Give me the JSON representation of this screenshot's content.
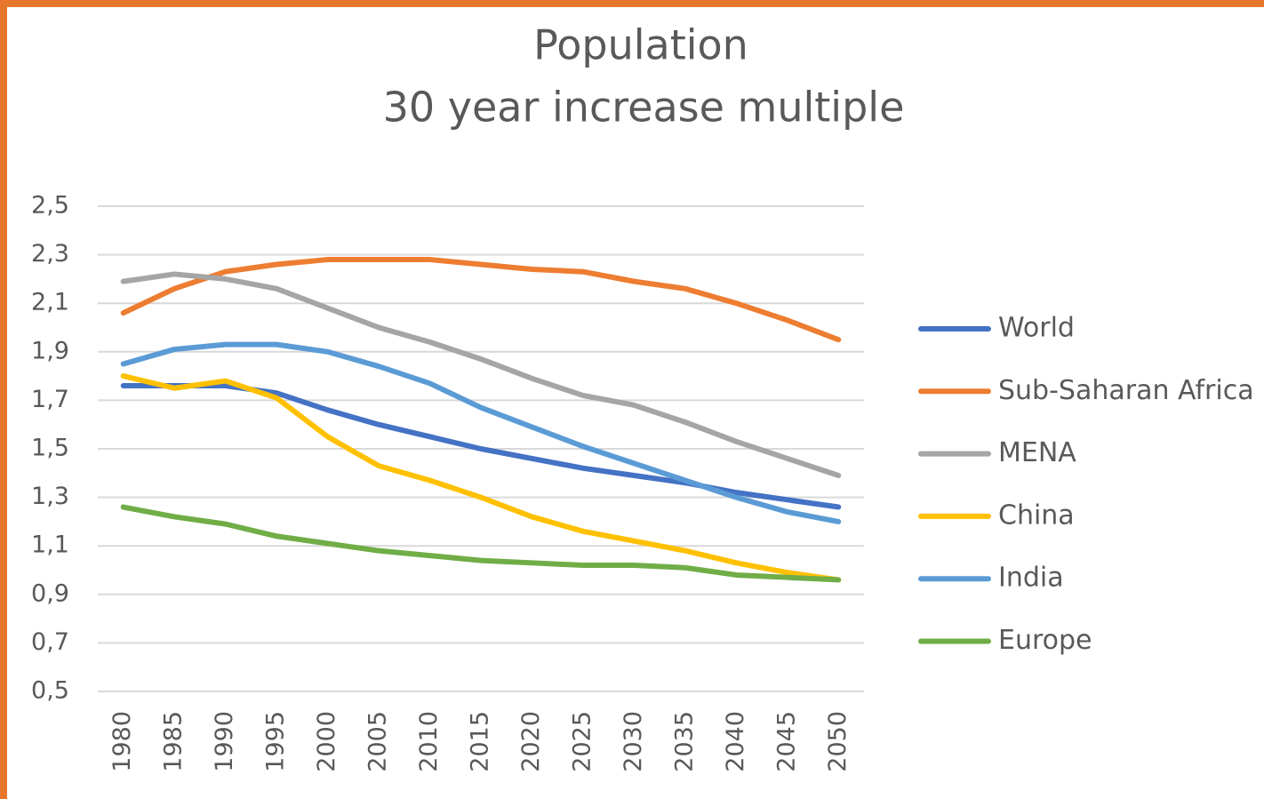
{
  "chart_data": {
    "type": "line",
    "title": "Population",
    "subtitle": "30 year increase multiple",
    "categories": [
      "1980",
      "1985",
      "1990",
      "1995",
      "2000",
      "2005",
      "2010",
      "2015",
      "2020",
      "2025",
      "2030",
      "2035",
      "2040",
      "2045",
      "2050"
    ],
    "series": [
      {
        "name": "World",
        "color": "#4472c4",
        "values": [
          1.76,
          1.76,
          1.76,
          1.73,
          1.66,
          1.6,
          1.55,
          1.5,
          1.46,
          1.42,
          1.39,
          1.36,
          1.32,
          1.29,
          1.26
        ]
      },
      {
        "name": "Sub-Saharan Africa",
        "color": "#ed7d31",
        "values": [
          2.06,
          2.16,
          2.23,
          2.26,
          2.28,
          2.28,
          2.28,
          2.26,
          2.24,
          2.23,
          2.19,
          2.16,
          2.1,
          2.03,
          1.95
        ]
      },
      {
        "name": "MENA",
        "color": "#a5a5a5",
        "values": [
          2.19,
          2.22,
          2.2,
          2.16,
          2.08,
          2.0,
          1.94,
          1.87,
          1.79,
          1.72,
          1.68,
          1.61,
          1.53,
          1.46,
          1.39
        ]
      },
      {
        "name": "China",
        "color": "#ffc000",
        "values": [
          1.8,
          1.75,
          1.78,
          1.71,
          1.55,
          1.43,
          1.37,
          1.3,
          1.22,
          1.16,
          1.12,
          1.08,
          1.03,
          0.99,
          0.96
        ]
      },
      {
        "name": "India",
        "color": "#5b9bd5",
        "values": [
          1.85,
          1.91,
          1.93,
          1.93,
          1.9,
          1.84,
          1.77,
          1.67,
          1.59,
          1.51,
          1.44,
          1.37,
          1.3,
          1.24,
          1.2
        ]
      },
      {
        "name": "Europe",
        "color": "#70ad47",
        "values": [
          1.26,
          1.22,
          1.19,
          1.14,
          1.11,
          1.08,
          1.06,
          1.04,
          1.03,
          1.02,
          1.02,
          1.01,
          0.98,
          0.97,
          0.96
        ]
      }
    ],
    "ylim": [
      0.5,
      2.5
    ],
    "yticks": [
      {
        "value": 0.5,
        "label": "0,5"
      },
      {
        "value": 0.7,
        "label": "0,7"
      },
      {
        "value": 0.9,
        "label": "0,9"
      },
      {
        "value": 1.1,
        "label": "1,1"
      },
      {
        "value": 1.3,
        "label": "1,3"
      },
      {
        "value": 1.5,
        "label": "1,5"
      },
      {
        "value": 1.7,
        "label": "1,7"
      },
      {
        "value": 1.9,
        "label": "1,9"
      },
      {
        "value": 2.1,
        "label": "2,1"
      },
      {
        "value": 2.3,
        "label": "2,3"
      },
      {
        "value": 2.5,
        "label": "2,5"
      }
    ],
    "grid": true,
    "legend": "right"
  }
}
